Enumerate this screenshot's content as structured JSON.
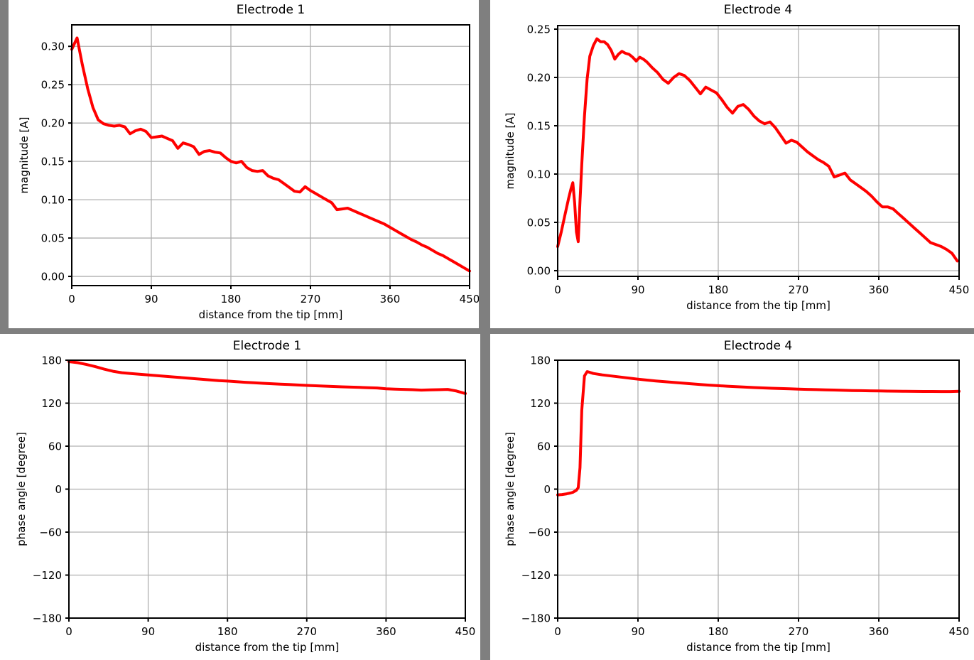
{
  "page": {
    "background_color": "#7f7f7f",
    "panel_background_color": "#ffffff"
  },
  "chart_data": [
    {
      "id": "electrode1-magnitude",
      "type": "line",
      "title": "Electrode 1",
      "xlabel": "distance from the tip [mm]",
      "ylabel": "magnitude [A]",
      "xlim": [
        0,
        450
      ],
      "ylim": [
        -0.012,
        0.328
      ],
      "grid": true,
      "legend": false,
      "line_color": "#ff0000",
      "grid_color": "#b0b0b0",
      "spine_color": "#000000",
      "xticks": {
        "values": [
          0,
          90,
          180,
          270,
          360,
          450
        ],
        "labels": [
          "0",
          "90",
          "180",
          "270",
          "360",
          "450"
        ]
      },
      "yticks": {
        "values": [
          0.0,
          0.05,
          0.1,
          0.15,
          0.2,
          0.25,
          0.3
        ],
        "labels": [
          "0.00",
          "0.05",
          "0.10",
          "0.15",
          "0.20",
          "0.25",
          "0.30"
        ]
      },
      "x": [
        0,
        6,
        12,
        18,
        24,
        30,
        36,
        42,
        48,
        54,
        60,
        66,
        72,
        78,
        84,
        90,
        96,
        102,
        108,
        114,
        120,
        126,
        132,
        138,
        144,
        150,
        156,
        162,
        168,
        174,
        180,
        186,
        192,
        198,
        204,
        210,
        216,
        222,
        228,
        234,
        240,
        246,
        252,
        258,
        264,
        270,
        276,
        282,
        288,
        294,
        300,
        306,
        312,
        318,
        324,
        330,
        336,
        342,
        348,
        354,
        360,
        366,
        372,
        378,
        384,
        390,
        396,
        402,
        408,
        414,
        420,
        426,
        432,
        438,
        444,
        450
      ],
      "y": [
        0.296,
        0.311,
        0.276,
        0.245,
        0.22,
        0.204,
        0.199,
        0.197,
        0.196,
        0.197,
        0.195,
        0.186,
        0.19,
        0.192,
        0.189,
        0.181,
        0.182,
        0.183,
        0.18,
        0.177,
        0.167,
        0.174,
        0.172,
        0.169,
        0.159,
        0.163,
        0.164,
        0.162,
        0.161,
        0.155,
        0.15,
        0.148,
        0.15,
        0.142,
        0.138,
        0.137,
        0.138,
        0.131,
        0.128,
        0.126,
        0.121,
        0.116,
        0.111,
        0.11,
        0.117,
        0.112,
        0.108,
        0.104,
        0.1,
        0.096,
        0.087,
        0.088,
        0.089,
        0.086,
        0.083,
        0.08,
        0.077,
        0.074,
        0.071,
        0.068,
        0.064,
        0.06,
        0.056,
        0.052,
        0.048,
        0.045,
        0.041,
        0.038,
        0.034,
        0.03,
        0.027,
        0.023,
        0.019,
        0.015,
        0.011,
        0.007
      ]
    },
    {
      "id": "electrode4-magnitude",
      "type": "line",
      "title": "Electrode 4",
      "xlabel": "distance from the tip [mm]",
      "ylabel": "magnitude [A]",
      "xlim": [
        0,
        450
      ],
      "ylim": [
        -0.0059,
        0.2537
      ],
      "grid": true,
      "legend": false,
      "line_color": "#ff0000",
      "grid_color": "#b0b0b0",
      "spine_color": "#000000",
      "xticks": {
        "values": [
          0,
          90,
          180,
          270,
          360,
          450
        ],
        "labels": [
          "0",
          "90",
          "180",
          "270",
          "360",
          "450"
        ]
      },
      "yticks": {
        "values": [
          0.0,
          0.05,
          0.1,
          0.15,
          0.2,
          0.25
        ],
        "labels": [
          "0.00",
          "0.05",
          "0.10",
          "0.15",
          "0.20",
          "0.25"
        ]
      },
      "x": [
        0,
        4,
        8,
        12,
        15,
        17,
        19,
        21,
        23,
        25,
        27,
        30,
        33,
        36,
        40,
        44,
        48,
        52,
        56,
        60,
        64,
        68,
        72,
        76,
        80,
        84,
        88,
        92,
        96,
        100,
        106,
        112,
        118,
        124,
        130,
        136,
        142,
        148,
        154,
        160,
        166,
        172,
        178,
        184,
        190,
        196,
        202,
        208,
        214,
        220,
        226,
        232,
        238,
        244,
        250,
        256,
        262,
        268,
        274,
        280,
        286,
        292,
        298,
        304,
        310,
        316,
        322,
        328,
        334,
        340,
        346,
        352,
        358,
        364,
        370,
        376,
        382,
        388,
        394,
        400,
        406,
        412,
        418,
        424,
        430,
        436,
        442,
        448
      ],
      "y": [
        0.025,
        0.04,
        0.057,
        0.074,
        0.085,
        0.091,
        0.07,
        0.04,
        0.03,
        0.072,
        0.11,
        0.16,
        0.198,
        0.222,
        0.233,
        0.24,
        0.237,
        0.237,
        0.234,
        0.228,
        0.219,
        0.224,
        0.227,
        0.225,
        0.224,
        0.221,
        0.217,
        0.221,
        0.219,
        0.216,
        0.21,
        0.205,
        0.198,
        0.194,
        0.2,
        0.204,
        0.202,
        0.197,
        0.19,
        0.183,
        0.19,
        0.187,
        0.184,
        0.177,
        0.169,
        0.163,
        0.17,
        0.172,
        0.167,
        0.16,
        0.155,
        0.152,
        0.154,
        0.148,
        0.14,
        0.132,
        0.135,
        0.133,
        0.128,
        0.123,
        0.119,
        0.115,
        0.112,
        0.108,
        0.097,
        0.099,
        0.101,
        0.094,
        0.09,
        0.086,
        0.082,
        0.077,
        0.071,
        0.066,
        0.066,
        0.064,
        0.059,
        0.054,
        0.049,
        0.044,
        0.039,
        0.034,
        0.029,
        0.027,
        0.025,
        0.022,
        0.018,
        0.01
      ]
    },
    {
      "id": "electrode1-phase",
      "type": "line",
      "title": "Electrode 1",
      "xlabel": "distance from the tip [mm]",
      "ylabel": "phase angle [degree]",
      "xlim": [
        0,
        450
      ],
      "ylim": [
        -180,
        180
      ],
      "grid": true,
      "legend": false,
      "line_color": "#ff0000",
      "grid_color": "#b0b0b0",
      "spine_color": "#000000",
      "xticks": {
        "values": [
          0,
          90,
          180,
          270,
          360,
          450
        ],
        "labels": [
          "0",
          "90",
          "180",
          "270",
          "360",
          "450"
        ]
      },
      "yticks": {
        "values": [
          -180,
          -120,
          -60,
          0,
          60,
          120,
          180
        ],
        "labels": [
          "−180",
          "−120",
          "−60",
          "0",
          "60",
          "120",
          "180"
        ]
      },
      "x": [
        0,
        10,
        20,
        30,
        40,
        50,
        60,
        70,
        80,
        90,
        100,
        110,
        120,
        130,
        140,
        150,
        160,
        170,
        180,
        190,
        200,
        210,
        220,
        230,
        240,
        250,
        260,
        270,
        280,
        290,
        300,
        310,
        320,
        330,
        340,
        350,
        360,
        370,
        380,
        390,
        400,
        410,
        420,
        430,
        440,
        450
      ],
      "y": [
        178,
        176.5,
        174,
        171,
        167.5,
        164.5,
        162.5,
        161.5,
        160.5,
        159.5,
        158.5,
        157.5,
        156.5,
        155.5,
        154.5,
        153.5,
        152.5,
        151.5,
        150.8,
        150,
        149.2,
        148.5,
        147.8,
        147.2,
        146.6,
        146,
        145.4,
        144.8,
        144.3,
        143.8,
        143.3,
        142.8,
        142.4,
        142,
        141.6,
        141.2,
        140.0,
        139.6,
        139.2,
        138.8,
        138.2,
        138.6,
        138.8,
        139.2,
        137.0,
        133.5
      ]
    },
    {
      "id": "electrode4-phase",
      "type": "line",
      "title": "Electrode 4",
      "xlabel": "distance from the tip [mm]",
      "ylabel": "phase angle [degree]",
      "xlim": [
        0,
        450
      ],
      "ylim": [
        -180,
        180
      ],
      "grid": true,
      "legend": false,
      "line_color": "#ff0000",
      "grid_color": "#b0b0b0",
      "spine_color": "#000000",
      "xticks": {
        "values": [
          0,
          90,
          180,
          270,
          360,
          450
        ],
        "labels": [
          "0",
          "90",
          "180",
          "270",
          "360",
          "450"
        ]
      },
      "yticks": {
        "values": [
          -180,
          -120,
          -60,
          0,
          60,
          120,
          180
        ],
        "labels": [
          "−180",
          "−120",
          "−60",
          "0",
          "60",
          "120",
          "180"
        ]
      },
      "x": [
        0,
        5,
        10,
        14,
        17,
        19,
        21,
        23,
        25,
        27,
        30,
        33,
        36,
        40,
        50,
        60,
        70,
        80,
        90,
        100,
        110,
        120,
        130,
        140,
        150,
        160,
        170,
        180,
        190,
        200,
        210,
        220,
        230,
        240,
        250,
        260,
        270,
        280,
        290,
        300,
        310,
        320,
        330,
        340,
        350,
        360,
        370,
        380,
        390,
        400,
        410,
        420,
        430,
        440,
        450
      ],
      "y": [
        -8,
        -7.5,
        -6.5,
        -5.5,
        -4.5,
        -3,
        -1.5,
        2,
        30,
        110,
        158,
        164,
        163,
        161.5,
        159.5,
        158,
        156.5,
        155,
        153.5,
        152.2,
        151,
        150,
        149,
        148,
        147,
        146,
        145.2,
        144.4,
        143.7,
        143,
        142.4,
        141.8,
        141.3,
        140.8,
        140.4,
        140,
        139.6,
        139.2,
        138.9,
        138.6,
        138.3,
        138,
        137.7,
        137.5,
        137.3,
        137.1,
        136.9,
        136.8,
        136.6,
        136.5,
        136.4,
        136.4,
        136.3,
        136.3,
        136.6
      ]
    }
  ]
}
